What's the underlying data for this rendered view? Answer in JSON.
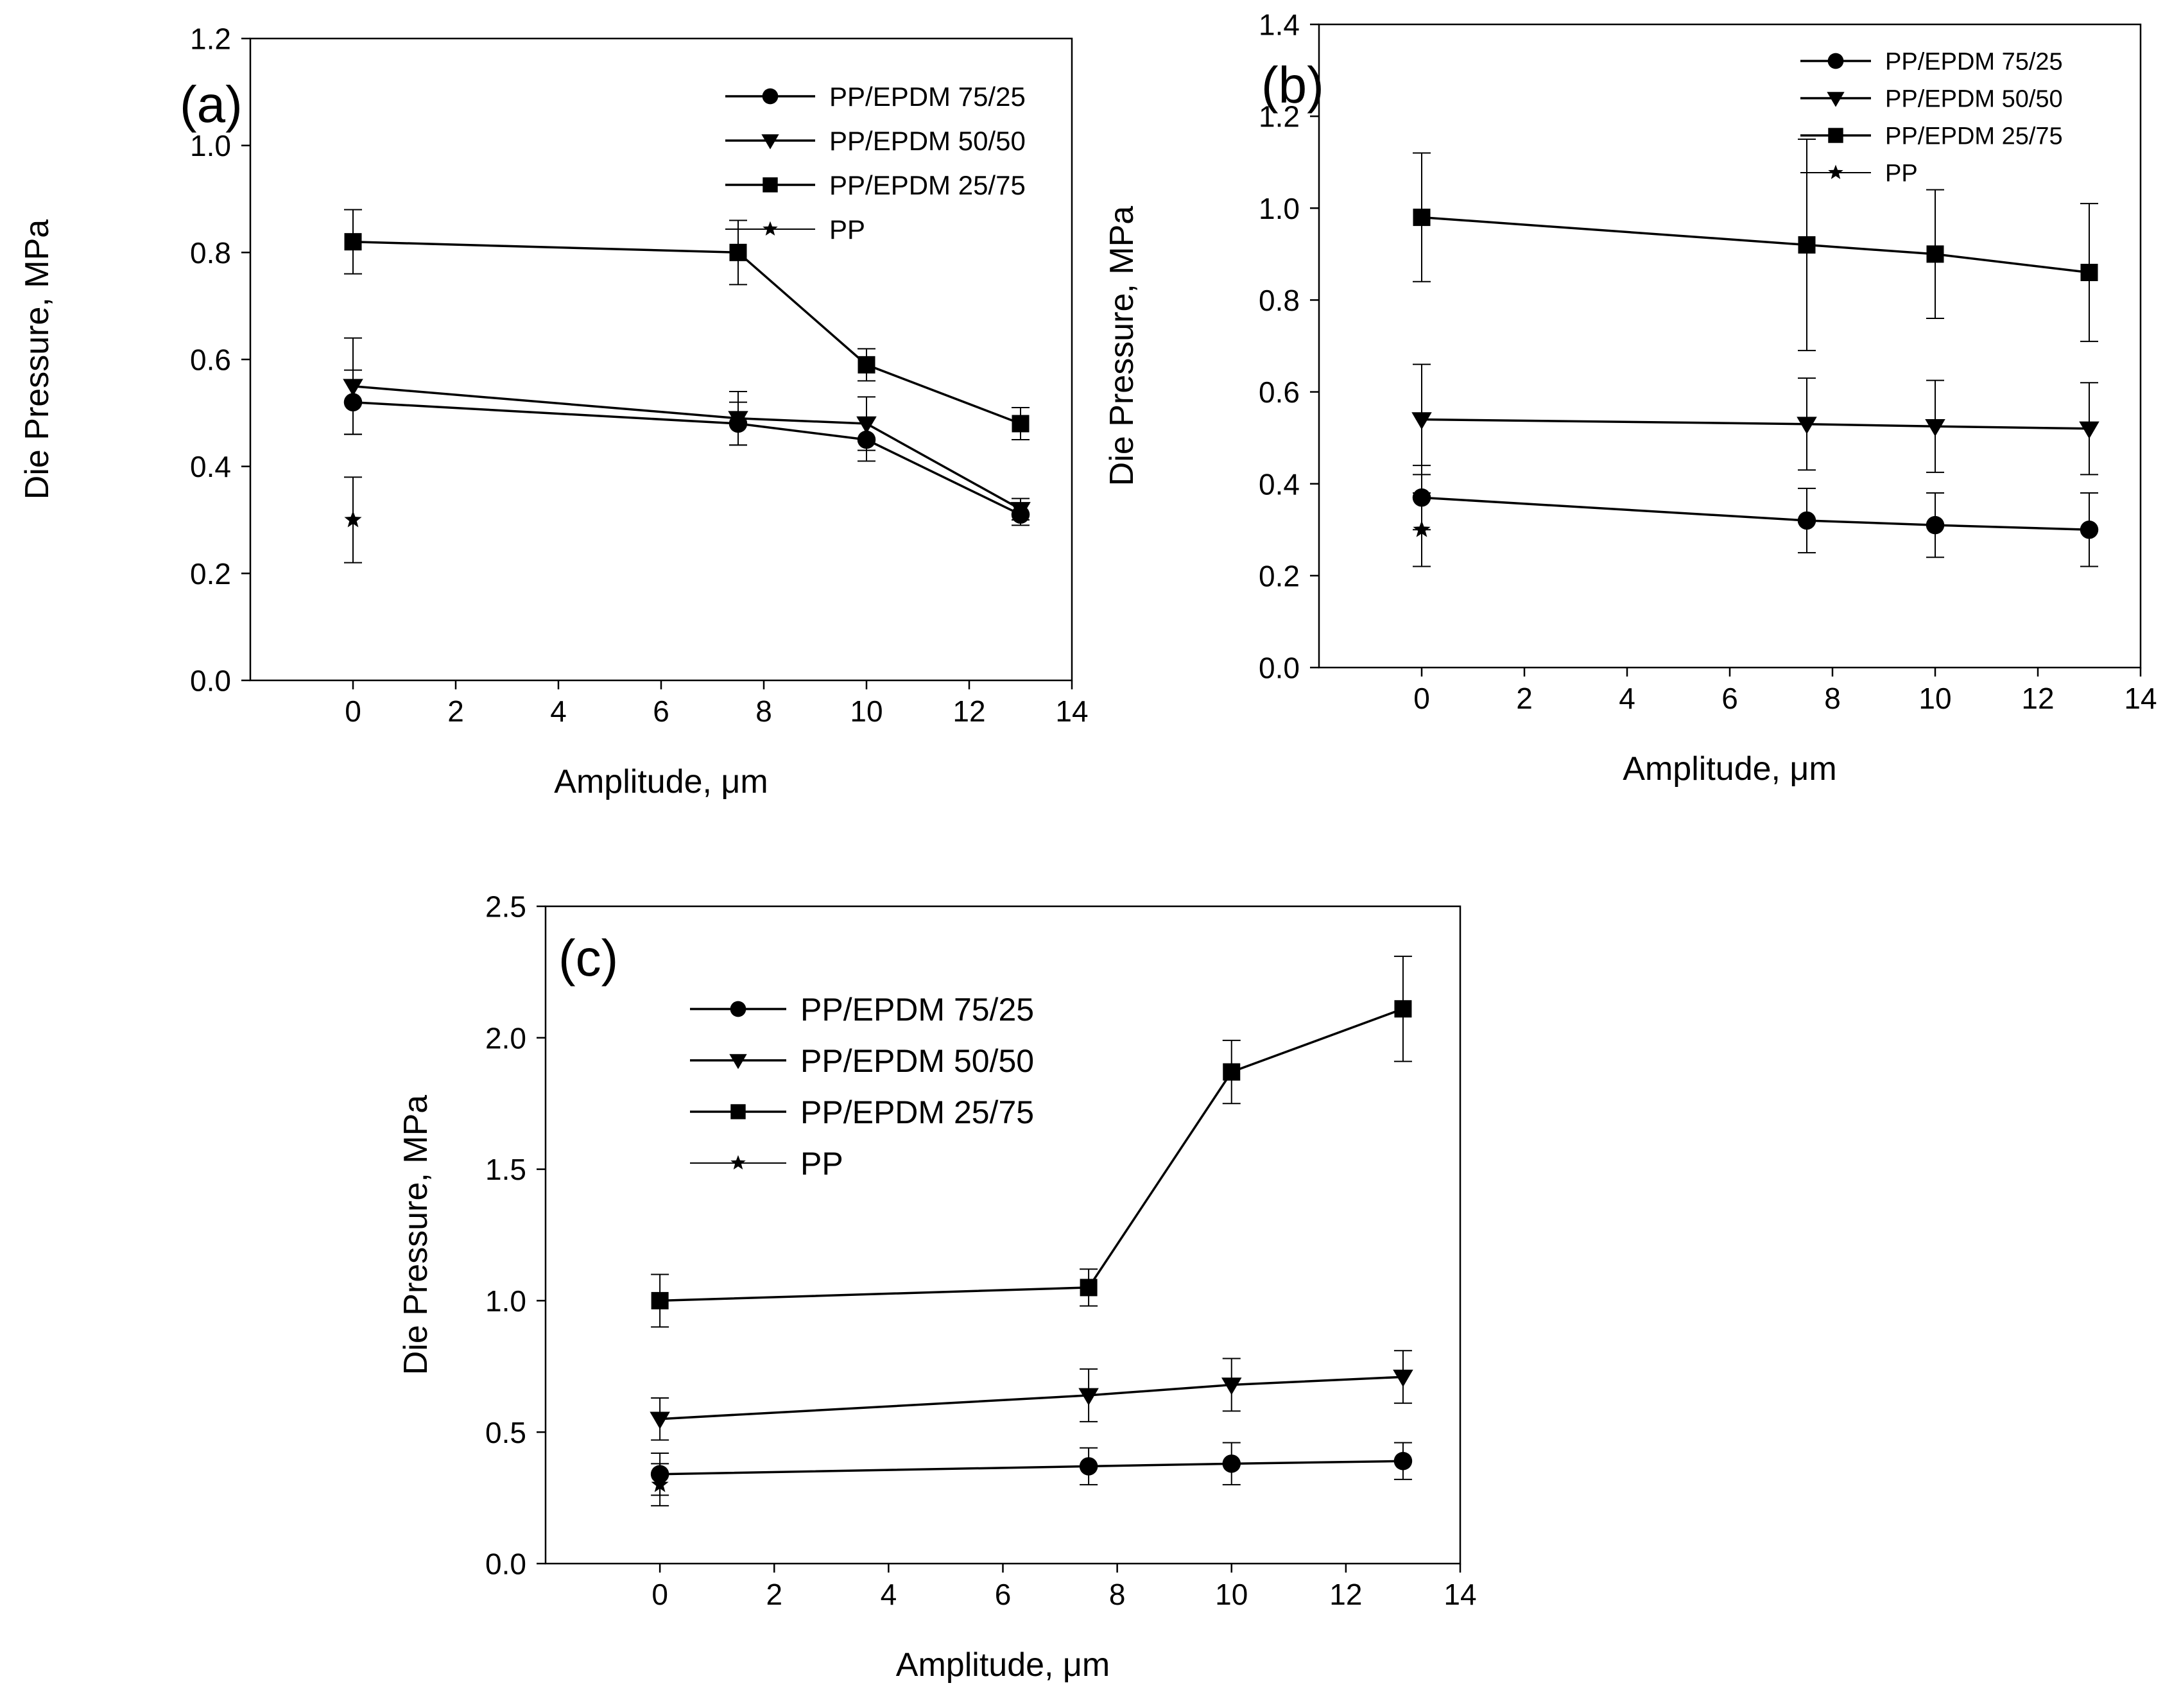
{
  "chart_data": [
    {
      "type": "line",
      "panel_label": "(a)",
      "xlabel": "Amplitude, μm",
      "ylabel": "Die Pressure, MPa",
      "xlim": [
        -2,
        14
      ],
      "ylim": [
        0,
        1.2
      ],
      "x_ticks": [
        0,
        2,
        4,
        6,
        8,
        10,
        12,
        14
      ],
      "x_tick_labels": [
        "0",
        "2",
        "4",
        "6",
        "8",
        "10",
        "12",
        "14"
      ],
      "y_ticks": [
        0,
        0.2,
        0.4,
        0.6,
        0.8,
        1.0,
        1.2
      ],
      "y_tick_labels": [
        "0.0",
        "0.2",
        "0.4",
        "0.6",
        "0.8",
        "1.0",
        "1.2"
      ],
      "legend_position": "top-right",
      "series": [
        {
          "name": "PP/EPDM 75/25",
          "marker": "circle",
          "x": [
            0,
            7.5,
            10,
            13
          ],
          "values": [
            0.52,
            0.48,
            0.45,
            0.31
          ],
          "errors": [
            0.06,
            0.04,
            0.04,
            0.02
          ]
        },
        {
          "name": "PP/EPDM 50/50",
          "marker": "triangle-down",
          "x": [
            0,
            7.5,
            10,
            13
          ],
          "values": [
            0.55,
            0.49,
            0.48,
            0.32
          ],
          "errors": [
            0.09,
            0.05,
            0.05,
            0.02
          ]
        },
        {
          "name": "PP/EPDM 25/75",
          "marker": "square",
          "x": [
            0,
            7.5,
            10,
            13
          ],
          "values": [
            0.82,
            0.8,
            0.59,
            0.48
          ],
          "errors": [
            0.06,
            0.06,
            0.03,
            0.03
          ]
        },
        {
          "name": "PP",
          "marker": "star",
          "x": [
            0
          ],
          "values": [
            0.3
          ],
          "errors": [
            0.08
          ]
        }
      ]
    },
    {
      "type": "line",
      "panel_label": "(b)",
      "xlabel": "Amplitude, μm",
      "ylabel": "Die Pressure, MPa",
      "xlim": [
        -2,
        14
      ],
      "ylim": [
        0,
        1.4
      ],
      "x_ticks": [
        0,
        2,
        4,
        6,
        8,
        10,
        12,
        14
      ],
      "x_tick_labels": [
        "0",
        "2",
        "4",
        "6",
        "8",
        "10",
        "12",
        "14"
      ],
      "y_ticks": [
        0,
        0.2,
        0.4,
        0.6,
        0.8,
        1.0,
        1.2,
        1.4
      ],
      "y_tick_labels": [
        "0.0",
        "0.2",
        "0.4",
        "0.6",
        "0.8",
        "1.0",
        "1.2",
        "1.4"
      ],
      "legend_position": "top-right",
      "series": [
        {
          "name": "PP/EPDM 75/25",
          "marker": "circle",
          "x": [
            0,
            7.5,
            10,
            13
          ],
          "values": [
            0.37,
            0.32,
            0.31,
            0.3
          ],
          "errors": [
            0.07,
            0.07,
            0.07,
            0.08
          ]
        },
        {
          "name": "PP/EPDM 50/50",
          "marker": "triangle-down",
          "x": [
            0,
            7.5,
            10,
            13
          ],
          "values": [
            0.54,
            0.53,
            0.525,
            0.52
          ],
          "errors": [
            0.12,
            0.1,
            0.1,
            0.1
          ]
        },
        {
          "name": "PP/EPDM 25/75",
          "marker": "square",
          "x": [
            0,
            7.5,
            10,
            13
          ],
          "values": [
            0.98,
            0.92,
            0.9,
            0.86
          ],
          "errors": [
            0.14,
            0.23,
            0.14,
            0.15
          ]
        },
        {
          "name": "PP",
          "marker": "star",
          "x": [
            0
          ],
          "values": [
            0.3
          ],
          "errors": [
            0.08
          ]
        }
      ]
    },
    {
      "type": "line",
      "panel_label": "(c)",
      "xlabel": "Amplitude, μm",
      "ylabel": "Die Pressure, MPa",
      "xlim": [
        -2,
        14
      ],
      "ylim": [
        0,
        2.5
      ],
      "x_ticks": [
        0,
        2,
        4,
        6,
        8,
        10,
        12,
        14
      ],
      "x_tick_labels": [
        "0",
        "2",
        "4",
        "6",
        "8",
        "10",
        "12",
        "14"
      ],
      "y_ticks": [
        0,
        0.5,
        1.0,
        1.5,
        2.0,
        2.5
      ],
      "y_tick_labels": [
        "0.0",
        "0.5",
        "1.0",
        "1.5",
        "2.0",
        "2.5"
      ],
      "legend_position": "top-left",
      "series": [
        {
          "name": "PP/EPDM 75/25",
          "marker": "circle",
          "x": [
            0,
            7.5,
            10,
            13
          ],
          "values": [
            0.34,
            0.37,
            0.38,
            0.39
          ],
          "errors": [
            0.08,
            0.07,
            0.08,
            0.07
          ]
        },
        {
          "name": "PP/EPDM 50/50",
          "marker": "triangle-down",
          "x": [
            0,
            7.5,
            10,
            13
          ],
          "values": [
            0.55,
            0.64,
            0.68,
            0.71
          ],
          "errors": [
            0.08,
            0.1,
            0.1,
            0.1
          ]
        },
        {
          "name": "PP/EPDM 25/75",
          "marker": "square",
          "x": [
            0,
            7.5,
            10,
            13
          ],
          "values": [
            1.0,
            1.05,
            1.87,
            2.11
          ],
          "errors": [
            0.1,
            0.07,
            0.12,
            0.2
          ]
        },
        {
          "name": "PP",
          "marker": "star",
          "x": [
            0
          ],
          "values": [
            0.3
          ],
          "errors": [
            0.08
          ]
        }
      ]
    }
  ]
}
